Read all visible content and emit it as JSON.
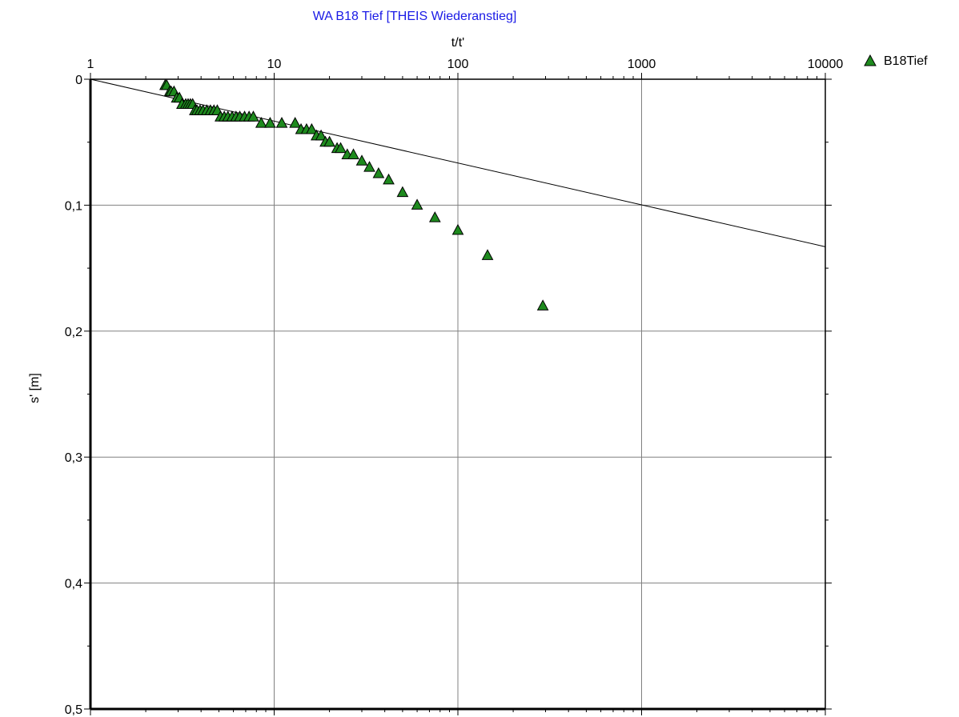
{
  "chart_data": {
    "type": "scatter",
    "title": "WA B18 Tief [THEIS Wiederanstieg]",
    "xlabel": "t/t'",
    "ylabel": "s' [m]",
    "x_scale": "log",
    "xlim": [
      1,
      10000
    ],
    "ylim": [
      0,
      0.5
    ],
    "y_inverted": true,
    "x_ticks": [
      "1",
      "10",
      "100",
      "1000",
      "10000"
    ],
    "y_ticks": [
      "0",
      "0,1",
      "0,2",
      "0,3",
      "0,4",
      "0,5"
    ],
    "grid": true,
    "legend_position": "top-right",
    "colors": {
      "marker": "#1e8a1e",
      "title": "#1a1ae6",
      "grid": "#808080",
      "line": "#000000"
    },
    "series": [
      {
        "name": "B18Tief",
        "marker": "triangle",
        "x": [
          2.55,
          2.6,
          2.7,
          2.75,
          2.85,
          2.95,
          3.05,
          3.15,
          3.3,
          3.4,
          3.5,
          3.6,
          3.7,
          3.8,
          3.95,
          4.1,
          4.3,
          4.5,
          4.7,
          4.9,
          5.1,
          5.35,
          5.6,
          5.9,
          6.2,
          6.5,
          6.9,
          7.3,
          7.7,
          8.5,
          9.5,
          11,
          13,
          14,
          15,
          16,
          17,
          18,
          19,
          20,
          22,
          23,
          25,
          27,
          30,
          33,
          37,
          42,
          50,
          60,
          75,
          100,
          145,
          290
        ],
        "y": [
          0.005,
          0.005,
          0.01,
          0.01,
          0.01,
          0.015,
          0.015,
          0.02,
          0.02,
          0.02,
          0.02,
          0.02,
          0.025,
          0.025,
          0.025,
          0.025,
          0.025,
          0.025,
          0.025,
          0.025,
          0.03,
          0.03,
          0.03,
          0.03,
          0.03,
          0.03,
          0.03,
          0.03,
          0.03,
          0.035,
          0.035,
          0.035,
          0.035,
          0.04,
          0.04,
          0.04,
          0.045,
          0.045,
          0.05,
          0.05,
          0.055,
          0.055,
          0.06,
          0.06,
          0.065,
          0.07,
          0.075,
          0.08,
          0.09,
          0.1,
          0.11,
          0.12,
          0.14,
          0.18
        ]
      }
    ],
    "fit_line": {
      "x": [
        1,
        10000
      ],
      "y": [
        0,
        0.133
      ]
    }
  }
}
